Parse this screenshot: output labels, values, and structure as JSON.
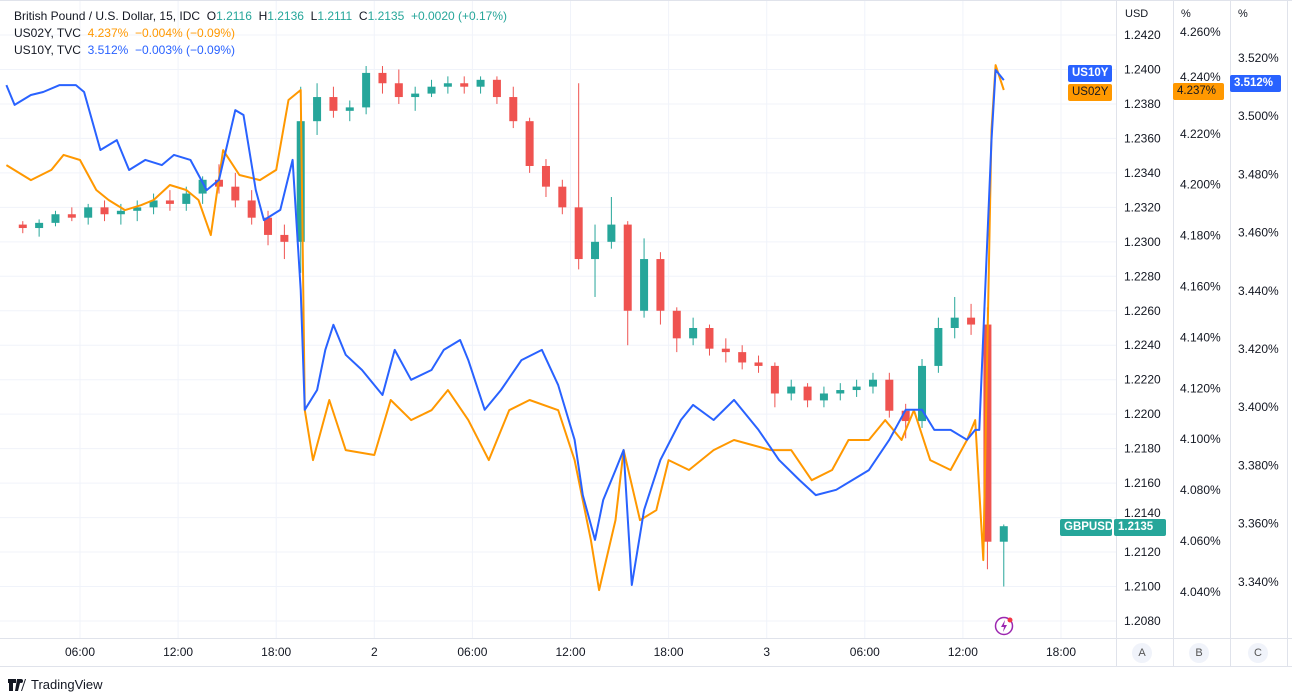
{
  "legend": {
    "main": {
      "name": "British Pound / U.S. Dollar, 15, IDC",
      "o_label": "O",
      "o": "1.2116",
      "h_label": "H",
      "h": "1.2136",
      "l_label": "L",
      "l": "1.2111",
      "c_label": "C",
      "c": "1.2135",
      "change": "+0.0020 (+0.17%)"
    },
    "us02y": {
      "name": "US02Y, TVC",
      "value": "4.237%",
      "change": "−0.004% (−0.09%)"
    },
    "us10y": {
      "name": "US10Y, TVC",
      "value": "3.512%",
      "change": "−0.003% (−0.09%)"
    }
  },
  "axes": {
    "a_title": "USD",
    "b_title": "%",
    "c_title": "%",
    "a_button": "A",
    "b_button": "B",
    "c_button": "C"
  },
  "tags": {
    "gbpusd_symbol": "GBPUSD",
    "gbpusd_price": "1.2135",
    "us02y_symbol": "US02Y",
    "us02y_price": "4.237%",
    "us10y_symbol": "US10Y",
    "us10y_price": "3.512%"
  },
  "brand": "TradingView",
  "colors": {
    "up": "#26a69a",
    "down": "#ef5350",
    "us02y": "#ff9800",
    "us10y": "#2962ff"
  },
  "chart_data": {
    "type": "candlestick + line",
    "grid": true,
    "x_ticks": [
      {
        "t": "1 06:00",
        "label": "06:00"
      },
      {
        "t": "1 12:00",
        "label": "12:00"
      },
      {
        "t": "1 18:00",
        "label": "18:00"
      },
      {
        "t": "2 00:00",
        "label": "2"
      },
      {
        "t": "2 06:00",
        "label": "06:00"
      },
      {
        "t": "2 12:00",
        "label": "12:00"
      },
      {
        "t": "2 18:00",
        "label": "18:00"
      },
      {
        "t": "3 00:00",
        "label": "3"
      },
      {
        "t": "3 06:00",
        "label": "06:00"
      },
      {
        "t": "3 12:00",
        "label": "12:00"
      },
      {
        "t": "3 18:00",
        "label": "18:00"
      }
    ],
    "axis_a_ticks": [
      "1.2420",
      "1.2400",
      "1.2380",
      "1.2360",
      "1.2340",
      "1.2320",
      "1.2300",
      "1.2280",
      "1.2260",
      "1.2240",
      "1.2220",
      "1.2200",
      "1.2180",
      "1.2160",
      "1.2140",
      "1.2120",
      "1.2100",
      "1.2080"
    ],
    "axis_b_ticks": [
      "4.260%",
      "4.240%",
      "4.220%",
      "4.200%",
      "4.180%",
      "4.160%",
      "4.140%",
      "4.120%",
      "4.100%",
      "4.080%",
      "4.060%",
      "4.040%"
    ],
    "axis_c_ticks": [
      "3.520%",
      "3.500%",
      "3.480%",
      "3.460%",
      "3.440%",
      "3.420%",
      "3.400%",
      "3.380%",
      "3.360%",
      "3.340%"
    ],
    "gbpusd_candles": [
      [
        "1 02:00",
        1.231,
        1.2312,
        1.2305,
        1.2308
      ],
      [
        "1 03:00",
        1.2308,
        1.2313,
        1.2303,
        1.2311
      ],
      [
        "1 04:00",
        1.2311,
        1.2318,
        1.2309,
        1.2316
      ],
      [
        "1 05:00",
        1.2316,
        1.232,
        1.2312,
        1.2314
      ],
      [
        "1 06:00",
        1.2314,
        1.2322,
        1.231,
        1.232
      ],
      [
        "1 07:00",
        1.232,
        1.2324,
        1.2312,
        1.2316
      ],
      [
        "1 08:00",
        1.2316,
        1.2322,
        1.231,
        1.2318
      ],
      [
        "1 09:00",
        1.2318,
        1.2324,
        1.2312,
        1.232
      ],
      [
        "1 10:00",
        1.232,
        1.2328,
        1.2316,
        1.2324
      ],
      [
        "1 11:00",
        1.2324,
        1.233,
        1.2318,
        1.2322
      ],
      [
        "1 12:00",
        1.2322,
        1.2332,
        1.2318,
        1.2328
      ],
      [
        "1 13:00",
        1.2328,
        1.2338,
        1.2322,
        1.2336
      ],
      [
        "1 14:00",
        1.2336,
        1.2345,
        1.2328,
        1.2332
      ],
      [
        "1 15:00",
        1.2332,
        1.234,
        1.232,
        1.2324
      ],
      [
        "1 16:00",
        1.2324,
        1.233,
        1.231,
        1.2314
      ],
      [
        "1 17:00",
        1.2314,
        1.2318,
        1.2298,
        1.2304
      ],
      [
        "1 18:00",
        1.2304,
        1.231,
        1.229,
        1.23
      ],
      [
        "1 19:00",
        1.23,
        1.239,
        1.2282,
        1.237
      ],
      [
        "1 20:00",
        1.237,
        1.2392,
        1.2362,
        1.2384
      ],
      [
        "1 21:00",
        1.2384,
        1.239,
        1.2372,
        1.2376
      ],
      [
        "1 22:00",
        1.2376,
        1.2382,
        1.237,
        1.2378
      ],
      [
        "1 23:00",
        1.2378,
        1.2402,
        1.2374,
        1.2398
      ],
      [
        "2 00:00",
        1.2398,
        1.2402,
        1.2386,
        1.2392
      ],
      [
        "2 01:00",
        1.2392,
        1.24,
        1.238,
        1.2384
      ],
      [
        "2 02:00",
        1.2384,
        1.239,
        1.2376,
        1.2386
      ],
      [
        "2 03:00",
        1.2386,
        1.2394,
        1.2384,
        1.239
      ],
      [
        "2 04:00",
        1.239,
        1.2396,
        1.2386,
        1.2392
      ],
      [
        "2 05:00",
        1.2392,
        1.2396,
        1.2386,
        1.239
      ],
      [
        "2 06:00",
        1.239,
        1.2396,
        1.2386,
        1.2394
      ],
      [
        "2 07:00",
        1.2394,
        1.2396,
        1.238,
        1.2384
      ],
      [
        "2 08:00",
        1.2384,
        1.239,
        1.2366,
        1.237
      ],
      [
        "2 09:00",
        1.237,
        1.2372,
        1.234,
        1.2344
      ],
      [
        "2 10:00",
        1.2344,
        1.2348,
        1.2326,
        1.2332
      ],
      [
        "2 11:00",
        1.2332,
        1.2336,
        1.2316,
        1.232
      ],
      [
        "2 12:00",
        1.232,
        1.2392,
        1.2284,
        1.229
      ],
      [
        "2 13:00",
        1.229,
        1.231,
        1.2268,
        1.23
      ],
      [
        "2 14:00",
        1.23,
        1.2326,
        1.2296,
        1.231
      ],
      [
        "2 15:00",
        1.231,
        1.2312,
        1.224,
        1.226
      ],
      [
        "2 16:00",
        1.226,
        1.2302,
        1.2256,
        1.229
      ],
      [
        "2 17:00",
        1.229,
        1.2294,
        1.2252,
        1.226
      ],
      [
        "2 18:00",
        1.226,
        1.2262,
        1.2236,
        1.2244
      ],
      [
        "2 19:00",
        1.2244,
        1.2256,
        1.224,
        1.225
      ],
      [
        "2 20:00",
        1.225,
        1.2252,
        1.2234,
        1.2238
      ],
      [
        "2 21:00",
        1.2238,
        1.2244,
        1.223,
        1.2236
      ],
      [
        "2 22:00",
        1.2236,
        1.224,
        1.2226,
        1.223
      ],
      [
        "2 23:00",
        1.223,
        1.2234,
        1.2224,
        1.2228
      ],
      [
        "3 00:00",
        1.2228,
        1.223,
        1.2204,
        1.2212
      ],
      [
        "3 01:00",
        1.2212,
        1.222,
        1.2208,
        1.2216
      ],
      [
        "3 02:00",
        1.2216,
        1.2218,
        1.2204,
        1.2208
      ],
      [
        "3 03:00",
        1.2208,
        1.2216,
        1.2204,
        1.2212
      ],
      [
        "3 04:00",
        1.2212,
        1.2218,
        1.2208,
        1.2214
      ],
      [
        "3 05:00",
        1.2214,
        1.222,
        1.221,
        1.2216
      ],
      [
        "3 06:00",
        1.2216,
        1.2224,
        1.2212,
        1.222
      ],
      [
        "3 07:00",
        1.222,
        1.2224,
        1.2198,
        1.2202
      ],
      [
        "3 08:00",
        1.2202,
        1.2206,
        1.2186,
        1.2196
      ],
      [
        "3 09:00",
        1.2196,
        1.2232,
        1.2192,
        1.2228
      ],
      [
        "3 10:00",
        1.2228,
        1.2256,
        1.2224,
        1.225
      ],
      [
        "3 11:00",
        1.225,
        1.2268,
        1.2244,
        1.2256
      ],
      [
        "3 12:00",
        1.2256,
        1.2264,
        1.2246,
        1.2252
      ],
      [
        "3 13:00",
        1.2252,
        1.2262,
        1.211,
        1.2126
      ],
      [
        "3 14:00",
        1.2126,
        1.2136,
        1.21,
        1.2135
      ]
    ],
    "series": [
      {
        "name": "US02Y",
        "axis": "B",
        "points": [
          [
            "1 01:30",
            4.2077
          ],
          [
            "1 03:00",
            4.2018
          ],
          [
            "1 04:15",
            4.2058
          ],
          [
            "1 05:00",
            4.2117
          ],
          [
            "1 06:00",
            4.2097
          ],
          [
            "1 07:00",
            4.1979
          ],
          [
            "1 07:45",
            4.194
          ],
          [
            "1 08:45",
            4.19
          ],
          [
            "1 09:45",
            4.192
          ],
          [
            "1 10:30",
            4.194
          ],
          [
            "1 11:30",
            4.1999
          ],
          [
            "1 12:30",
            4.1979
          ],
          [
            "1 13:15",
            4.194
          ],
          [
            "1 14:00",
            4.1802
          ],
          [
            "1 14:45",
            4.2136
          ],
          [
            "1 15:45",
            4.2038
          ],
          [
            "1 17:00",
            4.2018
          ],
          [
            "1 18:00",
            4.2058
          ],
          [
            "1 18:45",
            4.2333
          ],
          [
            "1 19:30",
            4.2372
          ],
          [
            "1 19:45",
            4.1114
          ],
          [
            "1 20:15",
            4.0918
          ],
          [
            "1 21:15",
            4.1154
          ],
          [
            "1 22:15",
            4.0957
          ],
          [
            "2 00:00",
            4.0938
          ],
          [
            "2 01:00",
            4.1154
          ],
          [
            "2 02:15",
            4.1075
          ],
          [
            "2 03:30",
            4.1114
          ],
          [
            "2 04:30",
            4.1193
          ],
          [
            "2 05:45",
            4.1075
          ],
          [
            "2 07:00",
            4.0918
          ],
          [
            "2 08:15",
            4.1114
          ],
          [
            "2 09:30",
            4.1154
          ],
          [
            "2 11:15",
            4.1114
          ],
          [
            "2 12:15",
            4.0918
          ],
          [
            "2 13:15",
            4.0603
          ],
          [
            "2 13:45",
            4.0407
          ],
          [
            "2 14:45",
            4.0682
          ],
          [
            "2 15:15",
            4.0957
          ],
          [
            "2 16:15",
            4.0682
          ],
          [
            "2 17:15",
            4.0721
          ],
          [
            "2 18:00",
            4.0918
          ],
          [
            "2 19:15",
            4.0879
          ],
          [
            "2 20:45",
            4.0957
          ],
          [
            "2 22:00",
            4.0997
          ],
          [
            "3 00:15",
            4.0957
          ],
          [
            "3 01:30",
            4.0957
          ],
          [
            "3 02:45",
            4.0839
          ],
          [
            "3 04:00",
            4.0879
          ],
          [
            "3 05:00",
            4.0997
          ],
          [
            "3 06:15",
            4.0997
          ],
          [
            "3 07:15",
            4.1075
          ],
          [
            "3 08:15",
            4.0997
          ],
          [
            "3 09:00",
            4.1114
          ],
          [
            "3 10:00",
            4.0918
          ],
          [
            "3 11:15",
            4.0879
          ],
          [
            "3 12:15",
            4.0997
          ],
          [
            "3 12:45",
            4.1075
          ],
          [
            "3 13:15",
            4.0525
          ],
          [
            "3 13:45",
            4.2215
          ],
          [
            "3 14:00",
            4.247
          ],
          [
            "3 14:30",
            4.2372
          ]
        ]
      },
      {
        "name": "US10Y",
        "axis": "C",
        "points": [
          [
            "1 01:30",
            3.5107
          ],
          [
            "1 02:00",
            3.5039
          ],
          [
            "1 03:00",
            3.5073
          ],
          [
            "1 03:45",
            3.5083
          ],
          [
            "1 04:45",
            3.5107
          ],
          [
            "1 05:45",
            3.5107
          ],
          [
            "1 06:15",
            3.5083
          ],
          [
            "1 07:15",
            3.4884
          ],
          [
            "1 08:15",
            3.4918
          ],
          [
            "1 09:00",
            3.4815
          ],
          [
            "1 10:00",
            3.485
          ],
          [
            "1 11:00",
            3.4832
          ],
          [
            "1 11:45",
            3.4867
          ],
          [
            "1 12:45",
            3.485
          ],
          [
            "1 13:45",
            3.4746
          ],
          [
            "1 14:30",
            3.4781
          ],
          [
            "1 15:30",
            3.5021
          ],
          [
            "1 16:00",
            3.5004
          ],
          [
            "1 16:45",
            3.4746
          ],
          [
            "1 17:15",
            3.4643
          ],
          [
            "1 18:15",
            3.4678
          ],
          [
            "1 19:00",
            3.485
          ],
          [
            "1 19:30",
            3.4403
          ],
          [
            "1 19:45",
            3.3991
          ],
          [
            "1 20:30",
            3.4059
          ],
          [
            "1 21:00",
            3.4197
          ],
          [
            "1 21:30",
            3.4283
          ],
          [
            "1 22:15",
            3.418
          ],
          [
            "1 23:15",
            3.4128
          ],
          [
            "2 00:30",
            3.4042
          ],
          [
            "2 01:15",
            3.4197
          ],
          [
            "2 02:15",
            3.4094
          ],
          [
            "2 03:30",
            3.4128
          ],
          [
            "2 04:15",
            3.4197
          ],
          [
            "2 05:15",
            3.4231
          ],
          [
            "2 05:45",
            3.4162
          ],
          [
            "2 06:45",
            3.3991
          ],
          [
            "2 07:45",
            3.4059
          ],
          [
            "2 09:00",
            3.4162
          ],
          [
            "2 10:15",
            3.4197
          ],
          [
            "2 11:15",
            3.4076
          ],
          [
            "2 12:15",
            3.3888
          ],
          [
            "2 12:45",
            3.3698
          ],
          [
            "2 13:30",
            3.3544
          ],
          [
            "2 14:00",
            3.3681
          ],
          [
            "2 14:45",
            3.3784
          ],
          [
            "2 15:15",
            3.3853
          ],
          [
            "2 15:45",
            3.3389
          ],
          [
            "2 16:30",
            3.3647
          ],
          [
            "2 17:30",
            3.3819
          ],
          [
            "2 18:45",
            3.3956
          ],
          [
            "2 19:30",
            3.4008
          ],
          [
            "2 20:45",
            3.3956
          ],
          [
            "2 22:00",
            3.4025
          ],
          [
            "2 23:30",
            3.3922
          ],
          [
            "3 00:45",
            3.3819
          ],
          [
            "3 02:00",
            3.375
          ],
          [
            "3 03:00",
            3.3698
          ],
          [
            "3 04:15",
            3.3716
          ],
          [
            "3 05:15",
            3.375
          ],
          [
            "3 06:15",
            3.3784
          ],
          [
            "3 07:30",
            3.3888
          ],
          [
            "3 08:30",
            3.3991
          ],
          [
            "3 09:30",
            3.3991
          ],
          [
            "3 10:15",
            3.3922
          ],
          [
            "3 11:15",
            3.3922
          ],
          [
            "3 12:15",
            3.3888
          ],
          [
            "3 12:45",
            3.3922
          ],
          [
            "3 13:00",
            3.3922
          ],
          [
            "3 13:45",
            3.4918
          ],
          [
            "3 14:00",
            3.5159
          ],
          [
            "3 14:30",
            3.5124
          ]
        ]
      }
    ]
  }
}
